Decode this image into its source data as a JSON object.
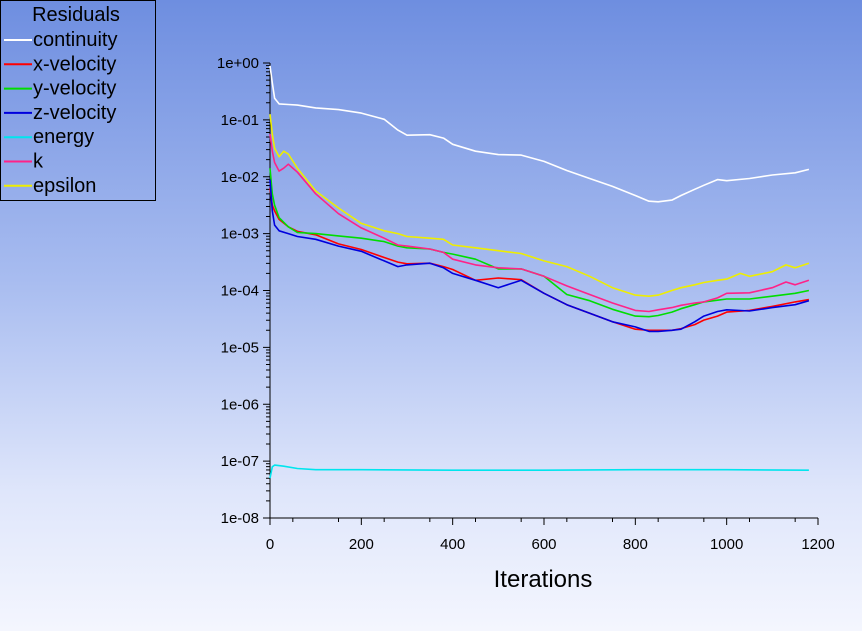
{
  "chart_data": {
    "type": "line",
    "title": "Residuals",
    "xlabel": "Iterations",
    "ylabel": "",
    "xlim": [
      0,
      1200
    ],
    "ylim_log10": [
      -8,
      0
    ],
    "x_ticks": [
      0,
      200,
      400,
      600,
      800,
      1000,
      1200
    ],
    "x_tick_labels": [
      "0",
      "200",
      "400",
      "600",
      "800",
      "1000",
      "1200"
    ],
    "y_tick_exponents": [
      0,
      -1,
      -2,
      -3,
      -4,
      -5,
      -6,
      -7,
      -8
    ],
    "y_tick_labels": [
      "1e+00",
      "1e-01",
      "1e-02",
      "1e-03",
      "1e-04",
      "1e-05",
      "1e-06",
      "1e-07",
      "1e-08"
    ],
    "y_scale": "log",
    "legend_position": "top-left",
    "grid": false,
    "series": [
      {
        "name": "continuity",
        "color": "#ffffff",
        "x": [
          0,
          5,
          10,
          20,
          40,
          60,
          100,
          150,
          200,
          250,
          280,
          300,
          350,
          380,
          400,
          450,
          500,
          550,
          600,
          650,
          700,
          750,
          800,
          830,
          850,
          880,
          900,
          930,
          950,
          980,
          1000,
          1050,
          1100,
          1150,
          1180
        ],
        "log10": [
          -0.05,
          -0.35,
          -0.62,
          -0.72,
          -0.73,
          -0.74,
          -0.79,
          -0.82,
          -0.88,
          -0.99,
          -1.18,
          -1.27,
          -1.26,
          -1.32,
          -1.43,
          -1.55,
          -1.61,
          -1.62,
          -1.73,
          -1.89,
          -2.03,
          -2.17,
          -2.33,
          -2.43,
          -2.44,
          -2.41,
          -2.33,
          -2.22,
          -2.15,
          -2.05,
          -2.07,
          -2.03,
          -1.97,
          -1.93,
          -1.87
        ]
      },
      {
        "name": "x-velocity",
        "color": "#ff0000",
        "x": [
          0,
          5,
          10,
          20,
          40,
          60,
          100,
          150,
          200,
          250,
          280,
          300,
          350,
          380,
          400,
          450,
          500,
          550,
          600,
          650,
          700,
          750,
          800,
          830,
          850,
          880,
          900,
          930,
          950,
          980,
          1000,
          1050,
          1100,
          1150,
          1180
        ],
        "log10": [
          -2.2,
          -2.5,
          -2.6,
          -2.75,
          -2.88,
          -2.96,
          -3.02,
          -3.18,
          -3.28,
          -3.42,
          -3.5,
          -3.53,
          -3.52,
          -3.58,
          -3.63,
          -3.82,
          -3.78,
          -3.81,
          -4.05,
          -4.25,
          -4.4,
          -4.55,
          -4.68,
          -4.7,
          -4.7,
          -4.7,
          -4.67,
          -4.6,
          -4.52,
          -4.45,
          -4.38,
          -4.35,
          -4.28,
          -4.2,
          -4.16
        ]
      },
      {
        "name": "y-velocity",
        "color": "#00dd00",
        "x": [
          0,
          5,
          10,
          20,
          40,
          60,
          100,
          150,
          200,
          250,
          280,
          300,
          350,
          380,
          400,
          450,
          500,
          550,
          600,
          650,
          700,
          750,
          800,
          830,
          850,
          880,
          900,
          930,
          950,
          980,
          1000,
          1050,
          1100,
          1150,
          1180
        ],
        "log10": [
          -1.85,
          -2.3,
          -2.5,
          -2.72,
          -2.88,
          -2.98,
          -3.0,
          -3.04,
          -3.08,
          -3.14,
          -3.22,
          -3.25,
          -3.27,
          -3.33,
          -3.36,
          -3.45,
          -3.62,
          -3.62,
          -3.75,
          -4.07,
          -4.18,
          -4.33,
          -4.45,
          -4.46,
          -4.44,
          -4.38,
          -4.32,
          -4.25,
          -4.2,
          -4.17,
          -4.15,
          -4.15,
          -4.1,
          -4.05,
          -4.0
        ]
      },
      {
        "name": "z-velocity",
        "color": "#0000dd",
        "x": [
          0,
          5,
          10,
          20,
          40,
          60,
          100,
          150,
          200,
          250,
          280,
          300,
          350,
          380,
          400,
          450,
          500,
          550,
          600,
          650,
          700,
          750,
          800,
          830,
          850,
          880,
          900,
          930,
          950,
          980,
          1000,
          1050,
          1100,
          1150,
          1180
        ],
        "log10": [
          -2.05,
          -2.6,
          -2.85,
          -2.95,
          -3.0,
          -3.05,
          -3.1,
          -3.22,
          -3.31,
          -3.48,
          -3.58,
          -3.55,
          -3.52,
          -3.6,
          -3.7,
          -3.82,
          -3.95,
          -3.82,
          -4.05,
          -4.25,
          -4.4,
          -4.55,
          -4.64,
          -4.72,
          -4.72,
          -4.7,
          -4.68,
          -4.55,
          -4.45,
          -4.37,
          -4.34,
          -4.36,
          -4.3,
          -4.25,
          -4.18
        ]
      },
      {
        "name": "energy",
        "color": "#00e5ee",
        "x": [
          0,
          5,
          10,
          30,
          60,
          100,
          200,
          400,
          600,
          800,
          1000,
          1180
        ],
        "log10": [
          -7.3,
          -7.1,
          -7.07,
          -7.09,
          -7.13,
          -7.15,
          -7.15,
          -7.16,
          -7.16,
          -7.15,
          -7.15,
          -7.16
        ]
      },
      {
        "name": "k",
        "color": "#ff2288",
        "x": [
          0,
          5,
          10,
          20,
          30,
          40,
          60,
          100,
          150,
          200,
          250,
          280,
          300,
          350,
          380,
          400,
          450,
          500,
          550,
          600,
          650,
          700,
          750,
          800,
          830,
          850,
          880,
          900,
          930,
          950,
          980,
          1000,
          1050,
          1100,
          1130,
          1150,
          1180
        ],
        "log10": [
          -1.25,
          -1.55,
          -1.75,
          -1.9,
          -1.85,
          -1.78,
          -1.92,
          -2.3,
          -2.65,
          -2.9,
          -3.08,
          -3.2,
          -3.22,
          -3.27,
          -3.33,
          -3.45,
          -3.55,
          -3.6,
          -3.62,
          -3.75,
          -3.92,
          -4.07,
          -4.22,
          -4.35,
          -4.37,
          -4.34,
          -4.3,
          -4.26,
          -4.22,
          -4.2,
          -4.13,
          -4.05,
          -4.04,
          -3.95,
          -3.85,
          -3.9,
          -3.82
        ]
      },
      {
        "name": "epsilon",
        "color": "#eeee00",
        "x": [
          0,
          5,
          10,
          20,
          30,
          40,
          60,
          100,
          150,
          200,
          250,
          280,
          300,
          350,
          380,
          400,
          450,
          500,
          550,
          600,
          650,
          700,
          750,
          800,
          830,
          850,
          880,
          900,
          930,
          950,
          980,
          1000,
          1030,
          1050,
          1100,
          1130,
          1150,
          1180
        ],
        "log10": [
          -0.9,
          -1.25,
          -1.5,
          -1.65,
          -1.55,
          -1.6,
          -1.85,
          -2.25,
          -2.55,
          -2.82,
          -2.95,
          -3.0,
          -3.05,
          -3.08,
          -3.1,
          -3.2,
          -3.25,
          -3.3,
          -3.35,
          -3.48,
          -3.58,
          -3.75,
          -3.95,
          -4.08,
          -4.1,
          -4.08,
          -4.0,
          -3.95,
          -3.9,
          -3.86,
          -3.82,
          -3.8,
          -3.7,
          -3.75,
          -3.67,
          -3.55,
          -3.6,
          -3.52
        ]
      }
    ]
  }
}
